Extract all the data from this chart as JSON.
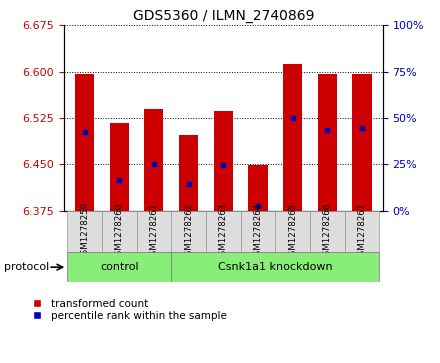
{
  "title": "GDS5360 / ILMN_2740869",
  "samples": [
    "GSM1278259",
    "GSM1278260",
    "GSM1278261",
    "GSM1278262",
    "GSM1278263",
    "GSM1278264",
    "GSM1278265",
    "GSM1278266",
    "GSM1278267"
  ],
  "bar_tops": [
    6.597,
    6.517,
    6.54,
    6.497,
    6.537,
    6.448,
    6.613,
    6.597,
    6.597
  ],
  "bar_bottom": 6.375,
  "blue_markers": [
    6.502,
    6.424,
    6.45,
    6.418,
    6.448,
    6.383,
    6.525,
    6.505,
    6.508
  ],
  "ylim_left": [
    6.375,
    6.675
  ],
  "yticks_left": [
    6.375,
    6.45,
    6.525,
    6.6,
    6.675
  ],
  "ylim_right": [
    0,
    100
  ],
  "yticks_right": [
    0,
    25,
    50,
    75,
    100
  ],
  "ytick_labels_right": [
    "0%",
    "25%",
    "50%",
    "75%",
    "100%"
  ],
  "control_samples": 3,
  "protocols": [
    "control",
    "Csnk1a1 knockdown"
  ],
  "bar_color": "#cc0000",
  "blue_color": "#0000bb",
  "control_bg": "#88ee77",
  "knockdown_bg": "#88ee77",
  "grid_color": "#000000",
  "left_tick_color": "#cc0000",
  "right_tick_color": "#0000bb",
  "protocol_label": "protocol",
  "legend_labels": [
    "transformed count",
    "percentile rank within the sample"
  ],
  "bg_color": "#ffffff",
  "plot_bg": "#ffffff",
  "bar_width": 0.55,
  "cell_color": "#dddddd"
}
